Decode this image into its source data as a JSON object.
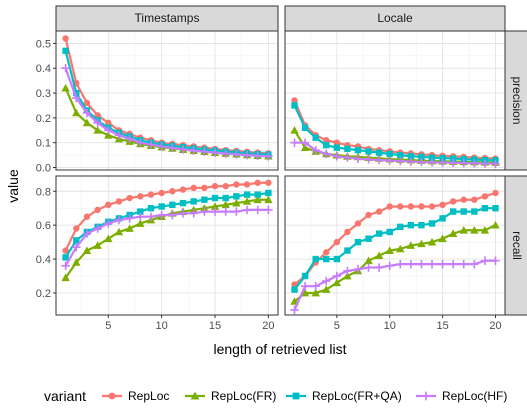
{
  "chart_data": {
    "type": "line",
    "xlabel": "length of retrieved list",
    "ylabel": "value",
    "x": [
      1,
      2,
      3,
      4,
      5,
      6,
      7,
      8,
      9,
      10,
      11,
      12,
      13,
      14,
      15,
      16,
      17,
      18,
      19,
      20
    ],
    "x_ticks": [
      "5",
      "10",
      "15",
      "20"
    ],
    "grid": true,
    "legend": {
      "title": "variant",
      "position": "bottom",
      "entries": [
        "RepLoc",
        "RepLoc(FR)",
        "RepLoc(FR+QA)",
        "RepLoc(HF)"
      ]
    },
    "facets": {
      "columns": [
        "Timestamps",
        "Locale"
      ],
      "rows": [
        "precision",
        "recall"
      ]
    },
    "series_styles": [
      {
        "name": "RepLoc",
        "color": "#F8766D",
        "marker": "circle"
      },
      {
        "name": "RepLoc(FR)",
        "color": "#7CAE00",
        "marker": "triangle"
      },
      {
        "name": "RepLoc(FR+QA)",
        "color": "#00BFC4",
        "marker": "square"
      },
      {
        "name": "RepLoc(HF)",
        "color": "#C77CFF",
        "marker": "plus"
      }
    ],
    "panels": [
      {
        "col": "Timestamps",
        "row": "precision",
        "ylim": [
          -0.01,
          0.55
        ],
        "y_ticks": [
          "0.0",
          "0.1",
          "0.2",
          "0.3",
          "0.4",
          "0.5"
        ],
        "series": [
          {
            "name": "RepLoc",
            "values": [
              0.52,
              0.34,
              0.26,
              0.21,
              0.18,
              0.15,
              0.135,
              0.12,
              0.11,
              0.1,
              0.095,
              0.09,
              0.085,
              0.08,
              0.075,
              0.07,
              0.067,
              0.063,
              0.06,
              0.057
            ]
          },
          {
            "name": "RepLoc(FR)",
            "values": [
              0.32,
              0.22,
              0.18,
              0.15,
              0.13,
              0.115,
              0.105,
              0.095,
              0.088,
              0.082,
              0.077,
              0.072,
              0.068,
              0.064,
              0.06,
              0.057,
              0.054,
              0.051,
              0.048,
              0.046
            ]
          },
          {
            "name": "RepLoc(FR+QA)",
            "values": [
              0.47,
              0.3,
              0.23,
              0.19,
              0.16,
              0.14,
              0.125,
              0.11,
              0.1,
              0.093,
              0.087,
              0.082,
              0.077,
              0.072,
              0.068,
              0.064,
              0.06,
              0.057,
              0.054,
              0.052
            ]
          },
          {
            "name": "RepLoc(HF)",
            "values": [
              0.4,
              0.28,
              0.22,
              0.18,
              0.15,
              0.13,
              0.115,
              0.1,
              0.092,
              0.085,
              0.079,
              0.073,
              0.068,
              0.064,
              0.06,
              0.056,
              0.053,
              0.05,
              0.047,
              0.045
            ]
          }
        ]
      },
      {
        "col": "Locale",
        "row": "precision",
        "ylim": [
          -0.01,
          0.55
        ],
        "y_ticks": [
          "0.0",
          "0.1",
          "0.2",
          "0.3",
          "0.4",
          "0.5"
        ],
        "series": [
          {
            "name": "RepLoc",
            "values": [
              0.27,
              0.17,
              0.13,
              0.11,
              0.1,
              0.09,
              0.085,
              0.075,
              0.07,
              0.065,
              0.06,
              0.057,
              0.053,
              0.05,
              0.047,
              0.045,
              0.043,
              0.04,
              0.038,
              0.036
            ]
          },
          {
            "name": "RepLoc(FR)",
            "values": [
              0.15,
              0.08,
              0.065,
              0.055,
              0.05,
              0.045,
              0.043,
              0.04,
              0.037,
              0.034,
              0.032,
              0.03,
              0.028,
              0.026,
              0.025,
              0.024,
              0.023,
              0.022,
              0.021,
              0.02
            ]
          },
          {
            "name": "RepLoc(FR+QA)",
            "values": [
              0.25,
              0.16,
              0.12,
              0.09,
              0.08,
              0.075,
              0.07,
              0.065,
              0.06,
              0.055,
              0.05,
              0.046,
              0.043,
              0.04,
              0.038,
              0.036,
              0.034,
              0.032,
              0.03,
              0.029
            ]
          },
          {
            "name": "RepLoc(HF)",
            "values": [
              0.1,
              0.1,
              0.07,
              0.055,
              0.045,
              0.04,
              0.035,
              0.033,
              0.03,
              0.028,
              0.026,
              0.024,
              0.022,
              0.021,
              0.02,
              0.019,
              0.018,
              0.017,
              0.016,
              0.015
            ]
          }
        ]
      },
      {
        "col": "Timestamps",
        "row": "recall",
        "ylim": [
          0.07,
          0.89
        ],
        "y_ticks": [
          "0.2",
          "0.4",
          "0.6",
          "0.8"
        ],
        "series": [
          {
            "name": "RepLoc",
            "values": [
              0.45,
              0.58,
              0.65,
              0.69,
              0.72,
              0.74,
              0.76,
              0.77,
              0.78,
              0.79,
              0.8,
              0.81,
              0.82,
              0.82,
              0.83,
              0.83,
              0.84,
              0.84,
              0.85,
              0.85
            ]
          },
          {
            "name": "RepLoc(FR)",
            "values": [
              0.29,
              0.38,
              0.45,
              0.48,
              0.52,
              0.56,
              0.58,
              0.61,
              0.63,
              0.65,
              0.67,
              0.68,
              0.69,
              0.7,
              0.71,
              0.72,
              0.73,
              0.74,
              0.75,
              0.75
            ]
          },
          {
            "name": "RepLoc(FR+QA)",
            "values": [
              0.41,
              0.51,
              0.56,
              0.59,
              0.62,
              0.64,
              0.66,
              0.68,
              0.7,
              0.71,
              0.72,
              0.73,
              0.74,
              0.75,
              0.76,
              0.76,
              0.77,
              0.78,
              0.78,
              0.79
            ]
          },
          {
            "name": "RepLoc(HF)",
            "values": [
              0.36,
              0.47,
              0.55,
              0.58,
              0.61,
              0.63,
              0.64,
              0.65,
              0.65,
              0.66,
              0.66,
              0.67,
              0.67,
              0.68,
              0.68,
              0.68,
              0.68,
              0.69,
              0.69,
              0.69
            ]
          }
        ]
      },
      {
        "col": "Locale",
        "row": "recall",
        "ylim": [
          0.07,
          0.89
        ],
        "y_ticks": [
          "0.2",
          "0.4",
          "0.6",
          "0.8"
        ],
        "series": [
          {
            "name": "RepLoc",
            "values": [
              0.25,
              0.3,
              0.38,
              0.44,
              0.5,
              0.56,
              0.61,
              0.66,
              0.68,
              0.71,
              0.71,
              0.71,
              0.71,
              0.71,
              0.72,
              0.74,
              0.75,
              0.75,
              0.77,
              0.79
            ]
          },
          {
            "name": "RepLoc(FR)",
            "values": [
              0.15,
              0.2,
              0.2,
              0.22,
              0.26,
              0.3,
              0.33,
              0.39,
              0.42,
              0.45,
              0.46,
              0.48,
              0.49,
              0.5,
              0.52,
              0.55,
              0.57,
              0.57,
              0.57,
              0.6
            ]
          },
          {
            "name": "RepLoc(FR+QA)",
            "values": [
              0.22,
              0.3,
              0.4,
              0.4,
              0.4,
              0.45,
              0.5,
              0.52,
              0.55,
              0.56,
              0.59,
              0.6,
              0.6,
              0.61,
              0.64,
              0.68,
              0.68,
              0.68,
              0.7,
              0.7
            ]
          },
          {
            "name": "RepLoc(HF)",
            "values": [
              0.1,
              0.24,
              0.24,
              0.27,
              0.3,
              0.33,
              0.34,
              0.35,
              0.35,
              0.36,
              0.37,
              0.37,
              0.37,
              0.37,
              0.37,
              0.37,
              0.37,
              0.37,
              0.39,
              0.39
            ]
          }
        ]
      }
    ]
  }
}
